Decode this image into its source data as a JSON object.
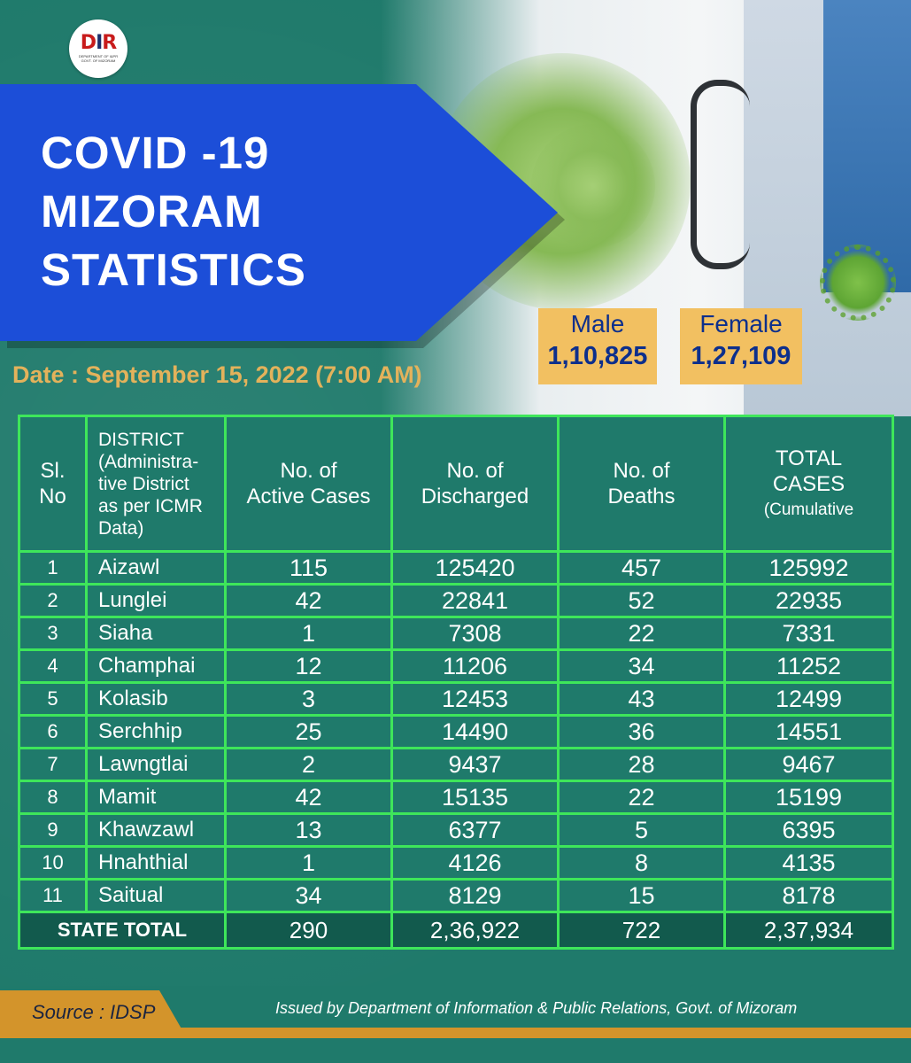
{
  "header": {
    "title_lines": [
      "COVID -19",
      "MIZORAM",
      "STATISTICS"
    ],
    "date": "Date : September 15, 2022 (7:00 AM)"
  },
  "gender": {
    "male": {
      "label": "Male",
      "value": "1,10,825"
    },
    "female": {
      "label": "Female",
      "value": "1,27,109"
    }
  },
  "table": {
    "headers": {
      "slno": [
        "Sl.",
        "No"
      ],
      "district": [
        "DISTRICT",
        "(Administra-",
        "tive District",
        "as per ICMR",
        "Data)"
      ],
      "active": [
        "No. of",
        "Active Cases"
      ],
      "discharged": [
        "No. of",
        "Discharged"
      ],
      "deaths": [
        "No. of",
        "Deaths"
      ],
      "total": [
        "TOTAL",
        "CASES",
        "(Cumulative"
      ]
    },
    "rows": [
      [
        "1",
        "Aizawl",
        "115",
        "125420",
        "457",
        "125992"
      ],
      [
        "2",
        "Lunglei",
        "42",
        "22841",
        "52",
        "22935"
      ],
      [
        "3",
        "Siaha",
        "1",
        "7308",
        "22",
        "7331"
      ],
      [
        "4",
        "Champhai",
        "12",
        "11206",
        "34",
        "11252"
      ],
      [
        "5",
        "Kolasib",
        "3",
        "12453",
        "43",
        "12499"
      ],
      [
        "6",
        "Serchhip",
        "25",
        "14490",
        "36",
        "14551"
      ],
      [
        "7",
        "Lawngtlai",
        "2",
        "9437",
        "28",
        "9467"
      ],
      [
        "8",
        "Mamit",
        "42",
        "15135",
        "22",
        "15199"
      ],
      [
        "9",
        "Khawzawl",
        "13",
        "6377",
        "5",
        "6395"
      ],
      [
        "10",
        "Hnahthial",
        "1",
        "4126",
        "8",
        "4135"
      ],
      [
        "11",
        "Saitual",
        "34",
        "8129",
        "15",
        "8178"
      ]
    ],
    "total": {
      "label": "STATE TOTAL",
      "active": "290",
      "discharged": "2,36,922",
      "deaths": "722",
      "total": "2,37,934"
    }
  },
  "footer": {
    "source": "Source : IDSP",
    "issued": "Issued by Department of  Information & Public Relations, Govt. of Mizoram"
  },
  "logo": {
    "mark": "DIPR",
    "sub": "DEPARTMENT OF I&PR GOVT. OF MIZORAM"
  },
  "colors": {
    "background": "#1f7a6b",
    "banner": "#1c4ed8",
    "grid": "#3ee65a",
    "gold": "#f2c061",
    "date": "#e3b25b",
    "accent": "#d3942b"
  }
}
